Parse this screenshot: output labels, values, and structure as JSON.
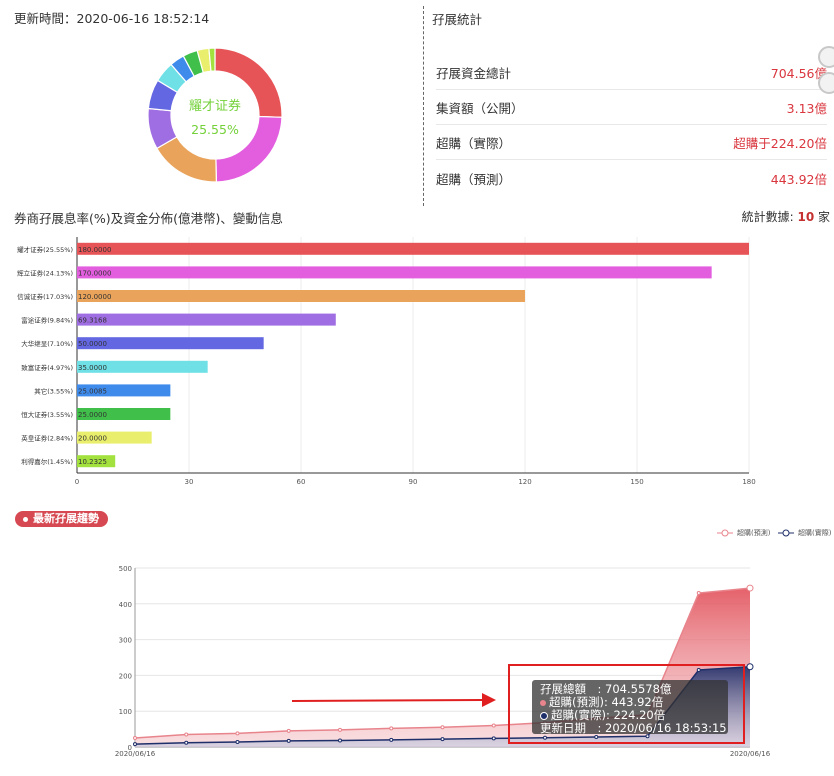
{
  "header": {
    "update_time": "更新時間：2020-06-16 18:52:14"
  },
  "donut": {
    "center_name": "耀才证券",
    "center_value": "25.55%",
    "colors": [
      "#e75457",
      "#e35ddf",
      "#e9a35a",
      "#a06ee3",
      "#6467e2",
      "#6ee0e6",
      "#3f8bec",
      "#40c04a",
      "#e9ef6c",
      "#a3e23e"
    ],
    "values": [
      25.55,
      24.13,
      17.03,
      9.84,
      7.1,
      4.97,
      3.55,
      3.55,
      2.84,
      1.45
    ]
  },
  "stats": {
    "title": "孖展統計",
    "rows": [
      {
        "label": "孖展資金總計",
        "value": "704.56億"
      },
      {
        "label": "集資額（公開）",
        "value": "3.13億"
      },
      {
        "label": "超購（實際）",
        "value": "超購于224.20倍"
      },
      {
        "label": "超購（預測）",
        "value": "443.92倍"
      }
    ]
  },
  "section2": {
    "title": "券商孖展息率(%)及資金分佈(億港幣)、變動信息",
    "count_prefix": "統計數據: ",
    "count_value": "10",
    "count_suffix": " 家"
  },
  "chart_data": [
    {
      "type": "bar",
      "orientation": "horizontal",
      "categories": [
        "耀才证券(25.55%)",
        "辉立证券(24.13%)",
        "信诚证券(17.03%)",
        "富途证券(9.84%)",
        "大华继显(7.10%)",
        "致富证券(4.97%)",
        "其它(3.55%)",
        "恒大证券(3.55%)",
        "英皇证券(2.84%)",
        "利得嘉尔(1.45%)"
      ],
      "values": [
        180.0,
        170.0,
        120.0,
        69.3168,
        50.0,
        35.0,
        25.0085,
        25.0,
        20.0,
        10.2325
      ],
      "data_labels": [
        "180.0000",
        "170.0000",
        "120.0000",
        "69.3168",
        "50.0000",
        "35.0000",
        "25.0085",
        "25.0000",
        "20.0000",
        "10.2325"
      ],
      "colors": [
        "#e75457",
        "#e35ddf",
        "#e9a35a",
        "#a06ee3",
        "#6467e2",
        "#6ee0e6",
        "#3f8bec",
        "#40c04a",
        "#e9ef6c",
        "#a3e23e"
      ],
      "xlim": [
        0,
        180
      ],
      "xticks": [
        "0",
        "30",
        "60",
        "90",
        "120",
        "150",
        "180"
      ]
    },
    {
      "type": "area",
      "x_start": "2020/06/16",
      "x_end": "2020/06/16",
      "ylim": [
        0,
        500
      ],
      "yticks": [
        "0",
        "100",
        "200",
        "300",
        "400",
        "500"
      ],
      "series": [
        {
          "name": "超購(預測)",
          "color": "#e8848c",
          "values": [
            25,
            35,
            38,
            45,
            48,
            52,
            55,
            60,
            68,
            80,
            90,
            430,
            443.92
          ]
        },
        {
          "name": "超購(實際)",
          "color": "#1f2f6a",
          "values": [
            8,
            12,
            14,
            17,
            18,
            20,
            22,
            24,
            26,
            28,
            30,
            215,
            224.2
          ]
        }
      ]
    }
  ],
  "trend": {
    "badge": "最新孖展趨勢",
    "tooltip": {
      "total": "孖展總額　: 704.5578億",
      "pred": "超購(預測): 443.92倍",
      "actual": "超購(實際): 224.20倍",
      "date": "更新日期　: 2020/06/16 18:53:15"
    }
  }
}
